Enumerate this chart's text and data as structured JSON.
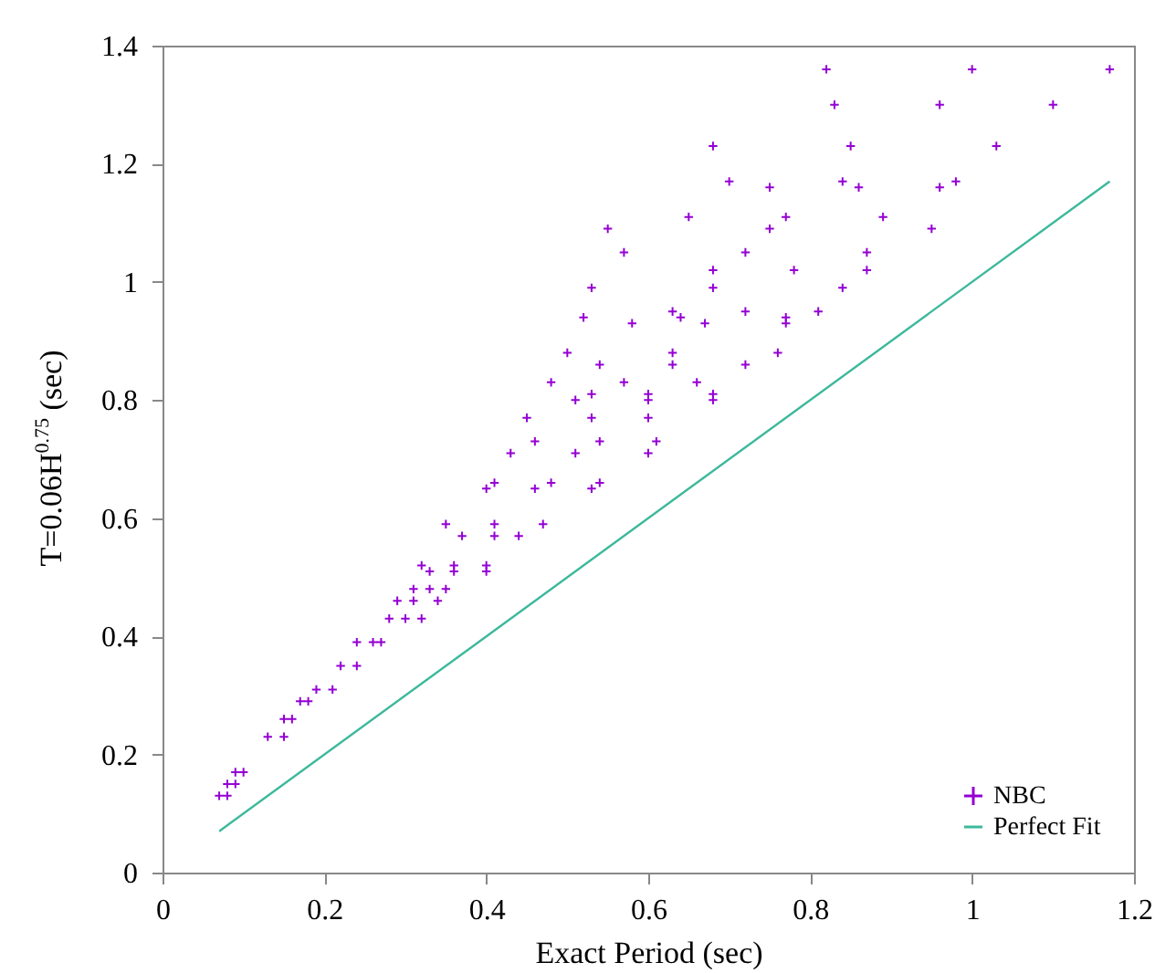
{
  "chart_data": {
    "type": "scatter",
    "xlabel": "Exact Period (sec)",
    "ylabel": "T=0.06H$^{0.75}$ (sec)",
    "xlim": [
      0,
      1.2
    ],
    "ylim": [
      0,
      1.4
    ],
    "xticks": [
      0,
      0.2,
      0.4,
      0.6,
      0.8,
      1,
      1.2
    ],
    "yticks": [
      0,
      0.2,
      0.4,
      0.6,
      0.8,
      1,
      1.2,
      1.4
    ],
    "grid": false,
    "legend": "bottom right",
    "series": [
      {
        "name": "NBC",
        "color": "#9400d3",
        "marker": "cross",
        "x": [
          0.82,
          1.0,
          1.17,
          0.83,
          0.96,
          1.1,
          0.68,
          0.85,
          1.03,
          0.7,
          0.84,
          0.98,
          0.75,
          0.86,
          0.96,
          0.65,
          0.77,
          0.89,
          0.55,
          0.75,
          0.95,
          0.57,
          0.72,
          0.87,
          0.68,
          0.78,
          0.87,
          0.53,
          0.68,
          0.84,
          0.63,
          0.72,
          0.81,
          0.52,
          0.64,
          0.77,
          0.58,
          0.67,
          0.77,
          0.5,
          0.63,
          0.76,
          0.54,
          0.63,
          0.72,
          0.48,
          0.57,
          0.66,
          0.53,
          0.6,
          0.68,
          0.51,
          0.6,
          0.68,
          0.45,
          0.53,
          0.6,
          0.46,
          0.54,
          0.61,
          0.43,
          0.51,
          0.6,
          0.41,
          0.48,
          0.54,
          0.4,
          0.46,
          0.53,
          0.35,
          0.41,
          0.47,
          0.37,
          0.41,
          0.44,
          0.32,
          0.36,
          0.4,
          0.33,
          0.36,
          0.4,
          0.31,
          0.33,
          0.35,
          0.29,
          0.31,
          0.34,
          0.28,
          0.3,
          0.32,
          0.24,
          0.26,
          0.27,
          0.22,
          0.24,
          0.19,
          0.21,
          0.17,
          0.18,
          0.15,
          0.16,
          0.13,
          0.15,
          0.09,
          0.1,
          0.08,
          0.09,
          0.07,
          0.08
        ],
        "values": [
          1.36,
          1.36,
          1.36,
          1.3,
          1.3,
          1.3,
          1.23,
          1.23,
          1.23,
          1.17,
          1.17,
          1.17,
          1.16,
          1.16,
          1.16,
          1.11,
          1.11,
          1.11,
          1.09,
          1.09,
          1.09,
          1.05,
          1.05,
          1.05,
          1.02,
          1.02,
          1.02,
          0.99,
          0.99,
          0.99,
          0.95,
          0.95,
          0.95,
          0.94,
          0.94,
          0.94,
          0.93,
          0.93,
          0.93,
          0.88,
          0.88,
          0.88,
          0.86,
          0.86,
          0.86,
          0.83,
          0.83,
          0.83,
          0.81,
          0.81,
          0.81,
          0.8,
          0.8,
          0.8,
          0.77,
          0.77,
          0.77,
          0.73,
          0.73,
          0.73,
          0.71,
          0.71,
          0.71,
          0.66,
          0.66,
          0.66,
          0.65,
          0.65,
          0.65,
          0.59,
          0.59,
          0.59,
          0.57,
          0.57,
          0.57,
          0.52,
          0.52,
          0.52,
          0.51,
          0.51,
          0.51,
          0.48,
          0.48,
          0.48,
          0.46,
          0.46,
          0.46,
          0.43,
          0.43,
          0.43,
          0.39,
          0.39,
          0.39,
          0.35,
          0.35,
          0.31,
          0.31,
          0.29,
          0.29,
          0.26,
          0.26,
          0.23,
          0.23,
          0.17,
          0.17,
          0.15,
          0.15,
          0.13,
          0.13
        ]
      },
      {
        "name": "Perfect Fit",
        "type": "line",
        "color": "#3cb89c",
        "x": [
          0.07,
          1.17
        ],
        "values": [
          0.07,
          1.17
        ]
      }
    ]
  }
}
